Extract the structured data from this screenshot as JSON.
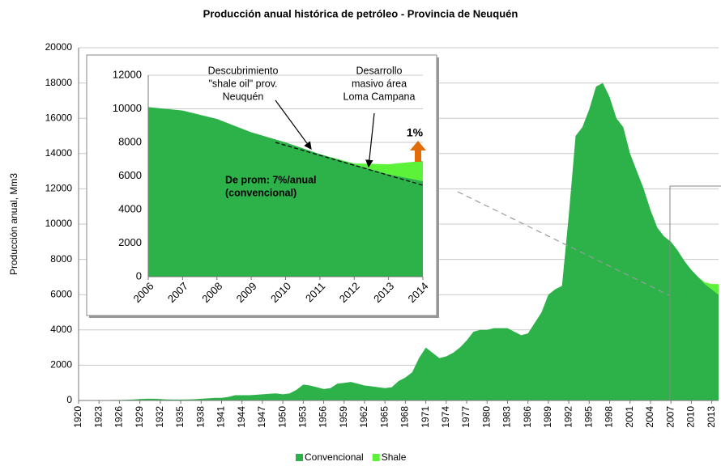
{
  "chart_data": [
    {
      "type": "area",
      "title": "Producción anual histórica de petróleo - Provincia de Neuquén",
      "y_label": "Producción anual, Mm3",
      "x": [
        1920,
        1921,
        1922,
        1923,
        1924,
        1925,
        1926,
        1927,
        1928,
        1929,
        1930,
        1931,
        1932,
        1933,
        1934,
        1935,
        1936,
        1937,
        1938,
        1939,
        1940,
        1941,
        1942,
        1943,
        1944,
        1945,
        1946,
        1947,
        1948,
        1949,
        1950,
        1951,
        1952,
        1953,
        1954,
        1955,
        1956,
        1957,
        1958,
        1959,
        1960,
        1961,
        1962,
        1963,
        1964,
        1965,
        1966,
        1967,
        1968,
        1969,
        1970,
        1971,
        1972,
        1973,
        1974,
        1975,
        1976,
        1977,
        1978,
        1979,
        1980,
        1981,
        1982,
        1983,
        1984,
        1985,
        1986,
        1987,
        1988,
        1989,
        1990,
        1991,
        1992,
        1993,
        1994,
        1995,
        1996,
        1997,
        1998,
        1999,
        2000,
        2001,
        2002,
        2003,
        2004,
        2005,
        2006,
        2007,
        2008,
        2009,
        2010,
        2011,
        2012,
        2013,
        2014
      ],
      "series": [
        {
          "name": "Convencional",
          "color": "#2db24a",
          "values": [
            20,
            20,
            20,
            20,
            20,
            30,
            30,
            40,
            50,
            80,
            100,
            100,
            80,
            60,
            50,
            50,
            60,
            70,
            100,
            120,
            150,
            150,
            200,
            300,
            300,
            300,
            320,
            350,
            380,
            400,
            350,
            400,
            600,
            900,
            850,
            750,
            650,
            700,
            950,
            1000,
            1050,
            950,
            850,
            800,
            750,
            700,
            750,
            1100,
            1300,
            1600,
            2400,
            3000,
            2700,
            2400,
            2500,
            2700,
            3000,
            3400,
            3900,
            4000,
            4000,
            4100,
            4100,
            4100,
            3900,
            3700,
            3800,
            4400,
            5000,
            6000,
            6300,
            6500,
            10500,
            15000,
            15500,
            16500,
            17800,
            18000,
            17200,
            16000,
            15500,
            14000,
            13000,
            12000,
            10800,
            9800,
            9300,
            9000,
            8500,
            7900,
            7400,
            7000,
            6600,
            6300,
            6000
          ]
        },
        {
          "name": "Shale",
          "color": "#5cf23a",
          "values": [
            0,
            0,
            0,
            0,
            0,
            0,
            0,
            0,
            0,
            0,
            0,
            0,
            0,
            0,
            0,
            0,
            0,
            0,
            0,
            0,
            0,
            0,
            0,
            0,
            0,
            0,
            0,
            0,
            0,
            0,
            0,
            0,
            0,
            0,
            0,
            0,
            0,
            0,
            0,
            0,
            0,
            0,
            0,
            0,
            0,
            0,
            0,
            0,
            0,
            0,
            0,
            0,
            0,
            0,
            0,
            0,
            0,
            0,
            0,
            0,
            0,
            0,
            0,
            0,
            0,
            0,
            0,
            0,
            0,
            0,
            0,
            0,
            0,
            0,
            0,
            0,
            0,
            0,
            0,
            0,
            0,
            0,
            0,
            0,
            0,
            0,
            0,
            0,
            0,
            0,
            0,
            0,
            100,
            300,
            600
          ]
        }
      ],
      "xlim": [
        1920,
        2014
      ],
      "xticks": [
        1920,
        1923,
        1926,
        1929,
        1932,
        1935,
        1938,
        1941,
        1944,
        1947,
        1950,
        1953,
        1956,
        1959,
        1962,
        1965,
        1968,
        1971,
        1974,
        1977,
        1980,
        1983,
        1986,
        1989,
        1992,
        1995,
        1998,
        2001,
        2004,
        2007,
        2010,
        2013
      ],
      "ylim": [
        0,
        20000
      ],
      "yticks": [
        0,
        2000,
        4000,
        6000,
        8000,
        10000,
        12000,
        14000,
        16000,
        18000,
        20000
      ],
      "grid": true,
      "stacked": true,
      "legend": "bottom"
    },
    {
      "type": "area",
      "x": [
        2006,
        2007,
        2008,
        2009,
        2010,
        2011,
        2012,
        2013,
        2014
      ],
      "series": [
        {
          "name": "Convencional",
          "color": "#2db24a",
          "values": [
            10100,
            9900,
            9400,
            8600,
            8000,
            7300,
            6700,
            6100,
            5700
          ]
        },
        {
          "name": "Shale",
          "color": "#5cf23a",
          "values": [
            0,
            0,
            0,
            0,
            0,
            0,
            50,
            600,
            1200
          ]
        }
      ],
      "xlim": [
        2006,
        2014
      ],
      "xticks": [
        2006,
        2007,
        2008,
        2009,
        2010,
        2011,
        2012,
        2013,
        2014
      ],
      "ylim": [
        0,
        12000
      ],
      "yticks": [
        0,
        2000,
        4000,
        6000,
        8000,
        10000,
        12000
      ],
      "grid": true,
      "stacked": true,
      "annotations": [
        {
          "lines": [
            "Descubrimiento",
            "\"shale oil\" prov.",
            "Neuquén"
          ]
        },
        {
          "lines": [
            "Desarrollo",
            "masivo área",
            "Loma Campana"
          ]
        },
        {
          "lines": [
            "1%"
          ]
        },
        {
          "lines": [
            "De prom: 7%/anual",
            "(convencional)"
          ]
        }
      ]
    }
  ]
}
